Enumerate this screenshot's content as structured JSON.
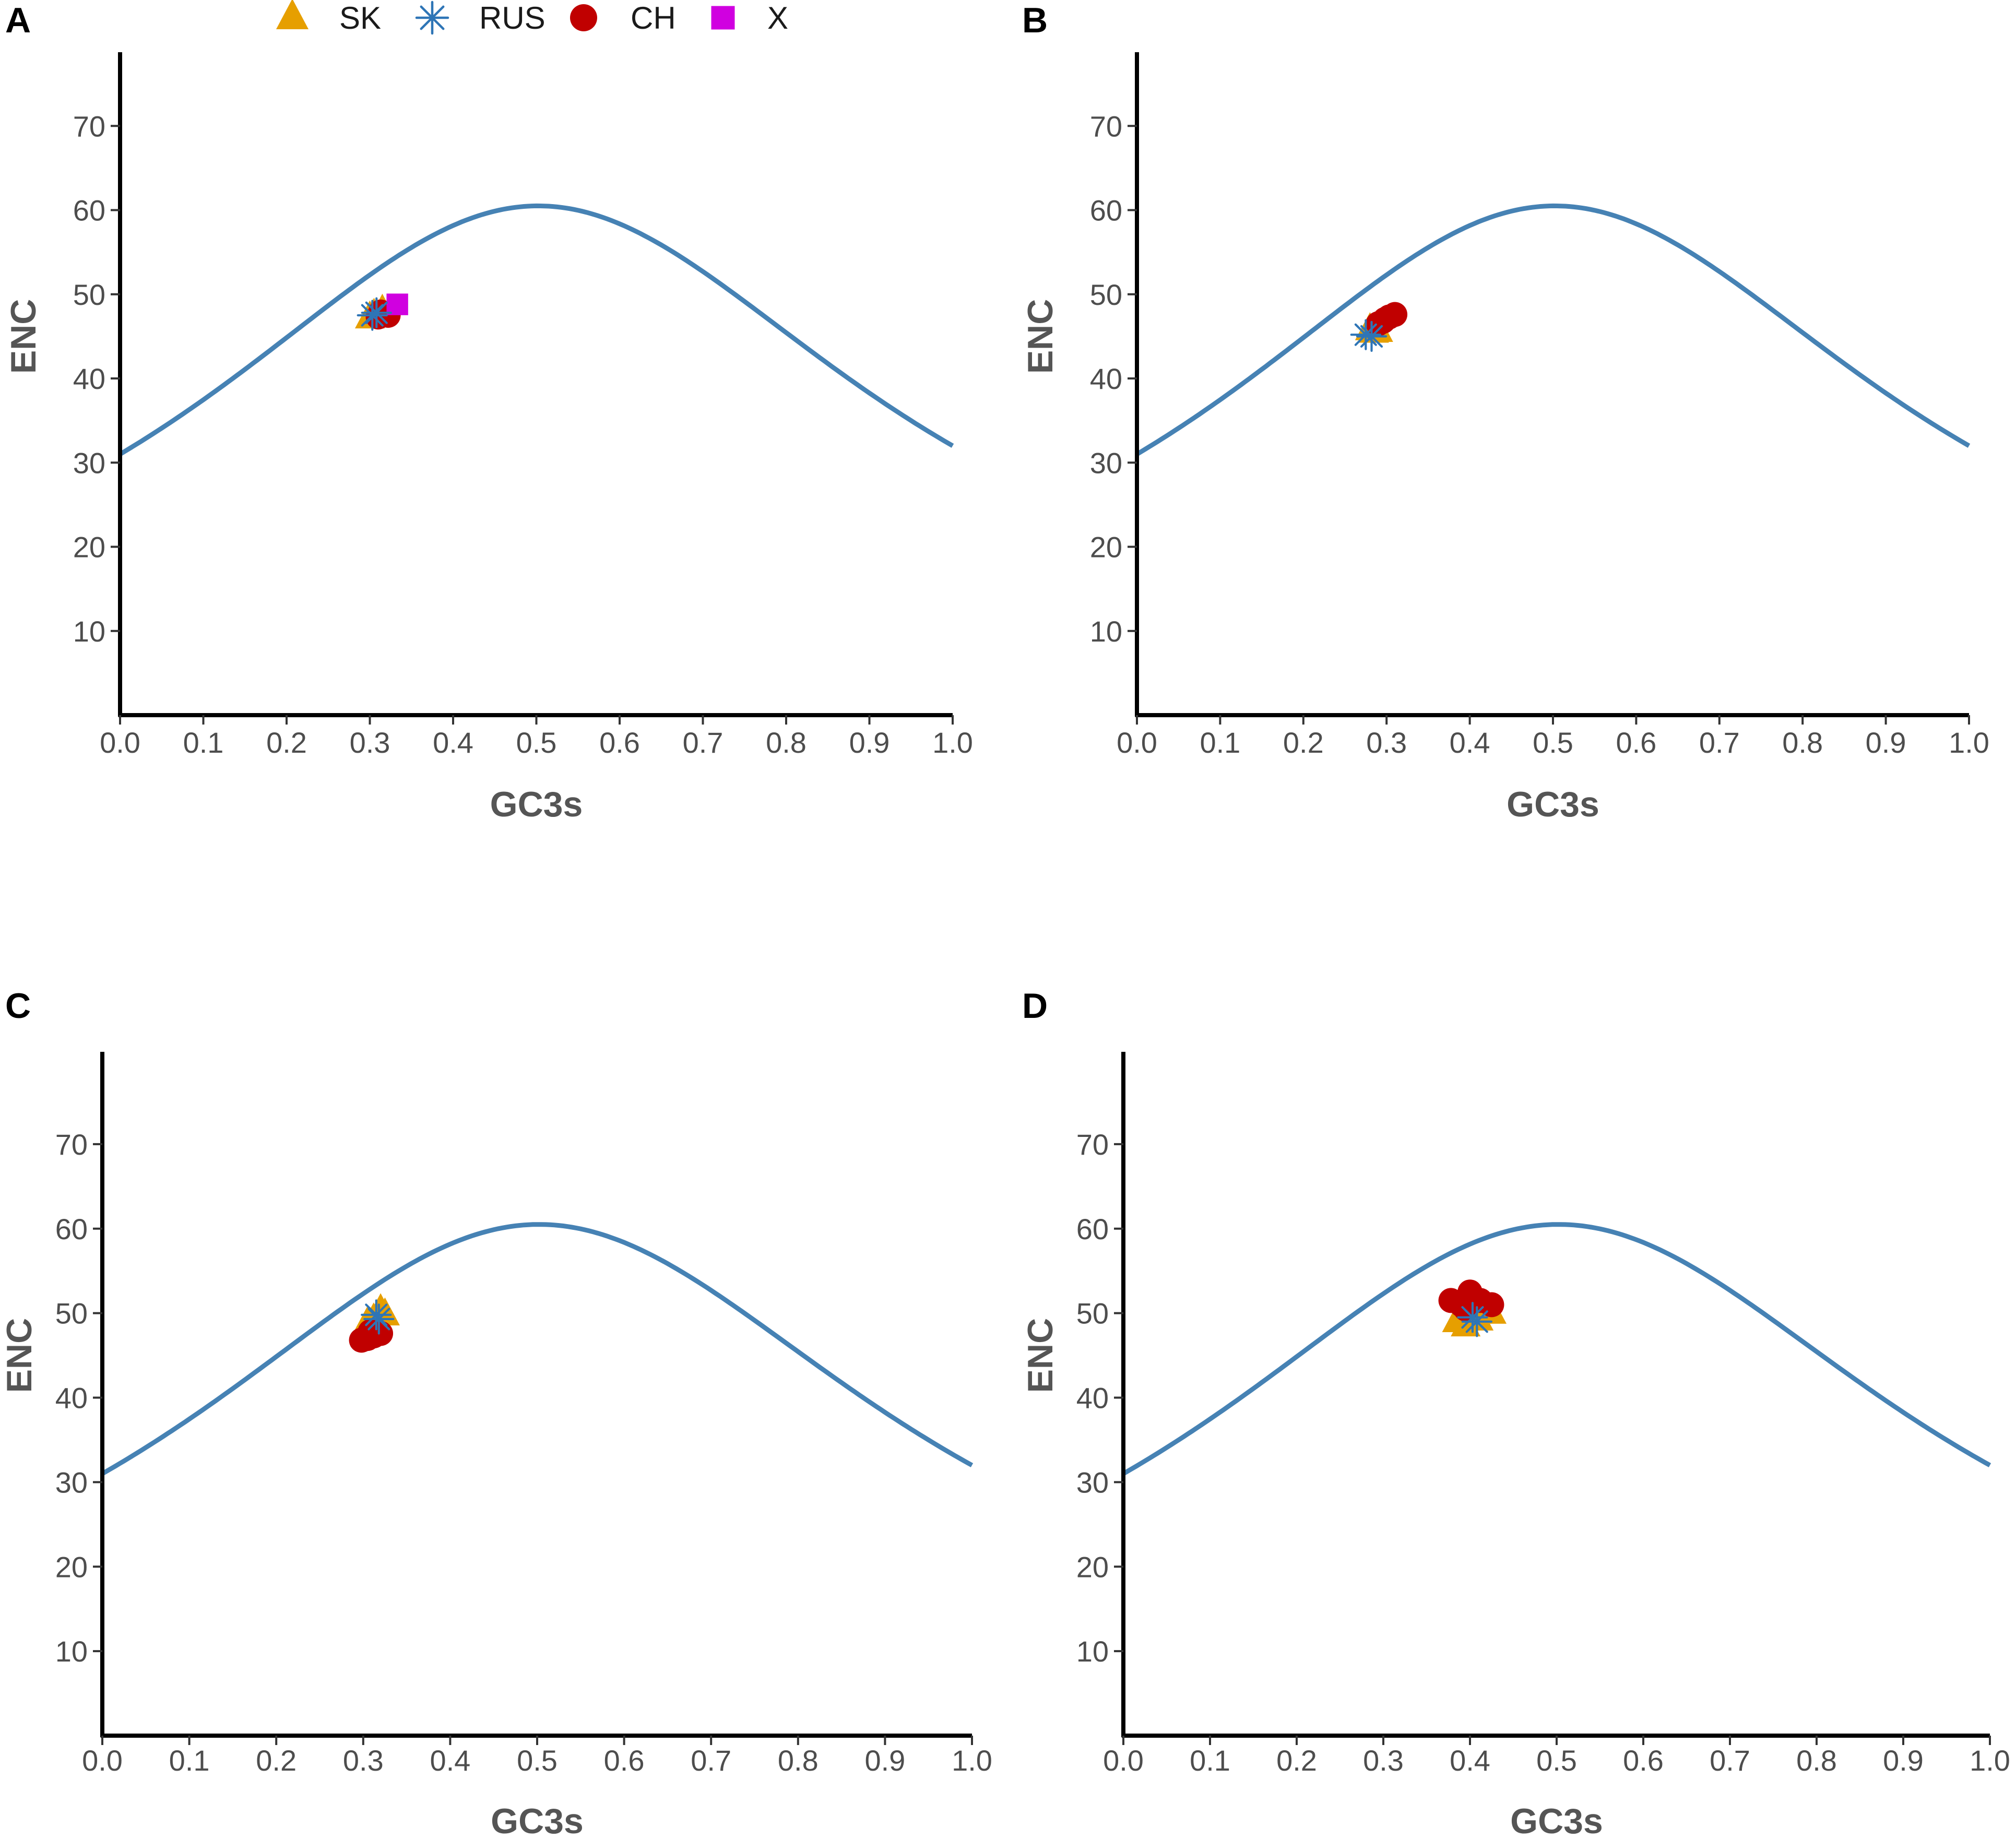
{
  "legend": {
    "items": [
      {
        "label": "SK",
        "marker": "triangle",
        "color": "#E69F00"
      },
      {
        "label": "RUS",
        "marker": "asterisk",
        "color": "#2E75B6"
      },
      {
        "label": "CH",
        "marker": "circle",
        "color": "#C00000"
      },
      {
        "label": "X",
        "marker": "square",
        "color": "#D000E0"
      }
    ]
  },
  "colors": {
    "curve": "#4682B4",
    "axis": "#000000"
  },
  "chart_data": [
    {
      "panel": "A",
      "type": "scatter",
      "xlabel": "GC3s",
      "ylabel": "ENC",
      "xlim": [
        0.0,
        1.0
      ],
      "ylim": [
        0,
        80
      ],
      "xticks": [
        "0.0",
        "0.1",
        "0.2",
        "0.3",
        "0.4",
        "0.5",
        "0.6",
        "0.7",
        "0.8",
        "0.9",
        "1.0"
      ],
      "yticks": [
        "10",
        "20",
        "30",
        "40",
        "50",
        "60",
        "70"
      ],
      "expected_curve": "ENC = 2 + s + 29/(s^2 + (1-s)^2)",
      "series": [
        {
          "name": "SK",
          "points": [
            [
              0.305,
              47.5
            ],
            [
              0.315,
              48.0
            ],
            [
              0.3,
              47.2
            ]
          ]
        },
        {
          "name": "RUS",
          "points": [
            [
              0.303,
              47.5
            ],
            [
              0.308,
              47.8
            ]
          ]
        },
        {
          "name": "CH",
          "points": [
            [
              0.31,
              47.3
            ],
            [
              0.318,
              47.7
            ],
            [
              0.322,
              47.5
            ],
            [
              0.313,
              47.9
            ]
          ]
        },
        {
          "name": "X",
          "points": [
            [
              0.333,
              48.8
            ]
          ]
        }
      ]
    },
    {
      "panel": "B",
      "type": "scatter",
      "xlabel": "GC3s",
      "ylabel": "ENC",
      "xlim": [
        0.0,
        1.0
      ],
      "ylim": [
        0,
        80
      ],
      "xticks": [
        "0.0",
        "0.1",
        "0.2",
        "0.3",
        "0.4",
        "0.5",
        "0.6",
        "0.7",
        "0.8",
        "0.9",
        "1.0"
      ],
      "yticks": [
        "10",
        "20",
        "30",
        "40",
        "50",
        "60",
        "70"
      ],
      "expected_curve": "ENC = 2 + s + 29/(s^2 + (1-s)^2)",
      "series": [
        {
          "name": "SK",
          "points": [
            [
              0.285,
              45.5
            ],
            [
              0.28,
              45.8
            ],
            [
              0.29,
              45.6
            ]
          ]
        },
        {
          "name": "RUS",
          "points": [
            [
              0.275,
              45.2
            ],
            [
              0.282,
              45.0
            ]
          ]
        },
        {
          "name": "CH",
          "points": [
            [
              0.29,
              46.5
            ],
            [
              0.298,
              47.0
            ],
            [
              0.303,
              47.3
            ],
            [
              0.31,
              47.6
            ],
            [
              0.296,
              46.8
            ]
          ]
        }
      ]
    },
    {
      "panel": "C",
      "type": "scatter",
      "xlabel": "GC3s",
      "ylabel": "ENC",
      "xlim": [
        0.0,
        1.0
      ],
      "ylim": [
        0,
        80
      ],
      "xticks": [
        "0.0",
        "0.1",
        "0.2",
        "0.3",
        "0.4",
        "0.5",
        "0.6",
        "0.7",
        "0.8",
        "0.9",
        "1.0"
      ],
      "yticks": [
        "10",
        "20",
        "30",
        "40",
        "50",
        "60",
        "70"
      ],
      "expected_curve": "ENC = 2 + s + 29/(s^2 + (1-s)^2)",
      "series": [
        {
          "name": "SK",
          "points": [
            [
              0.32,
              50.3
            ],
            [
              0.305,
              48.8
            ],
            [
              0.325,
              49.8
            ],
            [
              0.312,
              49.2
            ]
          ]
        },
        {
          "name": "RUS",
          "points": [
            [
              0.315,
              49.8
            ],
            [
              0.318,
              49.3
            ]
          ]
        },
        {
          "name": "CH",
          "points": [
            [
              0.298,
              46.8
            ],
            [
              0.305,
              47.0
            ],
            [
              0.312,
              47.3
            ],
            [
              0.32,
              47.6
            ],
            [
              0.308,
              47.8
            ]
          ]
        }
      ]
    },
    {
      "panel": "D",
      "type": "scatter",
      "xlabel": "GC3s",
      "ylabel": "ENC",
      "xlim": [
        0.0,
        1.0
      ],
      "ylim": [
        0,
        80
      ],
      "xticks": [
        "0.0",
        "0.1",
        "0.2",
        "0.3",
        "0.4",
        "0.5",
        "0.6",
        "0.7",
        "0.8",
        "0.9",
        "1.0"
      ],
      "yticks": [
        "10",
        "20",
        "30",
        "40",
        "50",
        "60",
        "70"
      ],
      "expected_curve": "ENC = 2 + s + 29/(s^2 + (1-s)^2)",
      "series": [
        {
          "name": "SK",
          "points": [
            [
              0.385,
              49.0
            ],
            [
              0.395,
              48.5
            ],
            [
              0.41,
              49.2
            ],
            [
              0.425,
              50.0
            ],
            [
              0.4,
              50.3
            ]
          ]
        },
        {
          "name": "RUS",
          "points": [
            [
              0.403,
              49.5
            ],
            [
              0.408,
              49.0
            ]
          ]
        },
        {
          "name": "CH",
          "points": [
            [
              0.378,
              51.5
            ],
            [
              0.39,
              51.0
            ],
            [
              0.4,
              52.5
            ],
            [
              0.412,
              51.5
            ],
            [
              0.425,
              51.0
            ],
            [
              0.395,
              50.5
            ]
          ]
        }
      ]
    }
  ]
}
